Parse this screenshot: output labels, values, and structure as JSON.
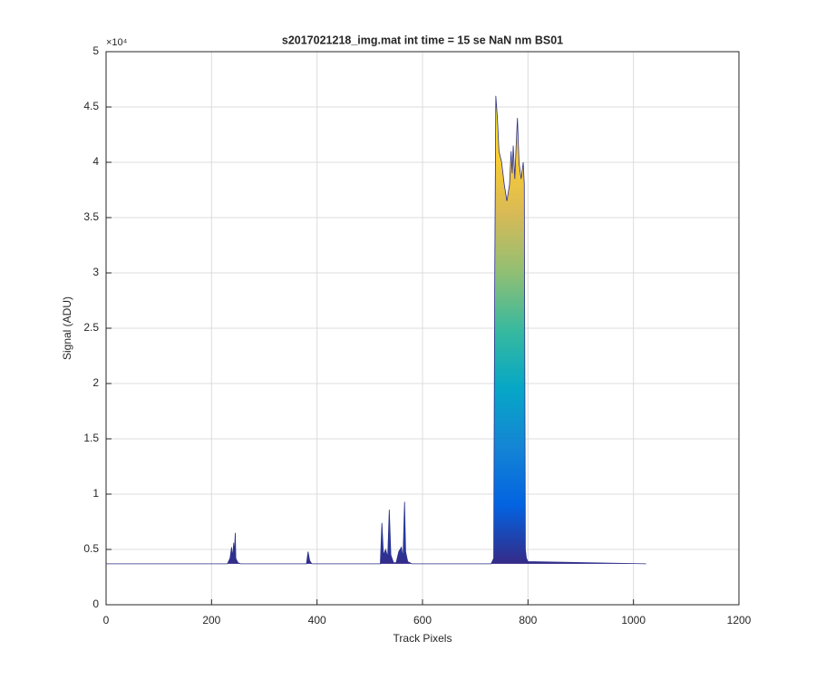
{
  "chart_data": {
    "type": "area",
    "title": "s2017021218_img.mat int time = 15 se  NaN nm BS01",
    "xlabel": "Track Pixels",
    "ylabel": "Signal (ADU)",
    "y_exponent_label": "×10⁴",
    "xlim": [
      0,
      1200
    ],
    "xticks": [
      0,
      200,
      400,
      600,
      800,
      1000,
      1200
    ],
    "ylim": [
      0,
      50000
    ],
    "yticks": [
      0,
      {
        "value": 5000,
        "label": "0.5"
      },
      {
        "value": 10000,
        "label": "1"
      },
      {
        "value": 15000,
        "label": "1.5"
      },
      {
        "value": 20000,
        "label": "2"
      },
      {
        "value": 25000,
        "label": "2.5"
      },
      {
        "value": 30000,
        "label": "3"
      },
      {
        "value": 35000,
        "label": "3.5"
      },
      {
        "value": 40000,
        "label": "4"
      },
      {
        "value": 45000,
        "label": "4.5"
      },
      {
        "value": 50000,
        "label": "5"
      }
    ],
    "grid": true,
    "colormap": [
      "#352a87",
      "#0363e1",
      "#1485d4",
      "#06a7c6",
      "#38b99e",
      "#92bf73",
      "#d9ba56",
      "#fcce2e",
      "#f9fb0e"
    ],
    "line_color": "#2b2f8a",
    "x": [
      1,
      230,
      235,
      238,
      240,
      242,
      243,
      245,
      246,
      250,
      255,
      380,
      383,
      386,
      390,
      520,
      523,
      526,
      530,
      534,
      537,
      540,
      545,
      550,
      555,
      560,
      563,
      566,
      568,
      572,
      580,
      730,
      735,
      737,
      739,
      742,
      745,
      750,
      755,
      760,
      765,
      768,
      770,
      772,
      775,
      778,
      780,
      783,
      787,
      791,
      793,
      795,
      797,
      800,
      1024
    ],
    "values": [
      3700,
      3700,
      4200,
      5200,
      4300,
      5600,
      4500,
      6500,
      4200,
      3800,
      3700,
      3700,
      4800,
      4000,
      3700,
      3700,
      7400,
      4500,
      5000,
      4300,
      8600,
      4500,
      3800,
      3800,
      4800,
      5200,
      4200,
      9300,
      4800,
      3900,
      3700,
      3700,
      4200,
      30000,
      46000,
      44000,
      41000,
      40000,
      38000,
      36500,
      38000,
      41000,
      39000,
      41500,
      38500,
      42000,
      44000,
      40000,
      38500,
      40000,
      38000,
      5000,
      4200,
      3900,
      3700
    ]
  }
}
